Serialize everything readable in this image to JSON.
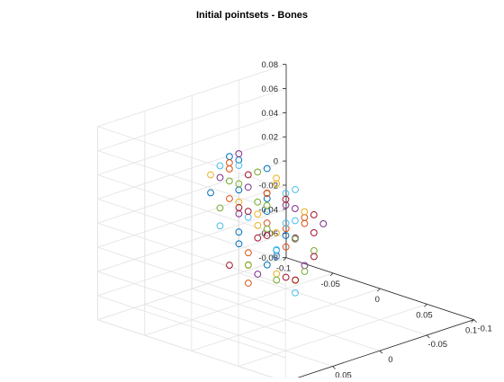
{
  "chart_data": {
    "type": "scatter",
    "projection": "3d",
    "title": "Initial pointsets - Bones",
    "xlabel": "",
    "ylabel": "",
    "zlabel": "",
    "grid": true,
    "marker": "circle-open",
    "xlim": [
      -0.1,
      0.1
    ],
    "ylim": [
      -0.1,
      0.1
    ],
    "zlim": [
      -0.08,
      0.08
    ],
    "x_ticks": [
      "-0.1",
      "-0.05",
      "0",
      "0.05",
      "0.1"
    ],
    "y_ticks": [
      "-0.1",
      "-0.05",
      "0",
      "0.05",
      "0.1"
    ],
    "z_ticks": [
      "-0.08",
      "-0.06",
      "-0.04",
      "-0.02",
      "0",
      "0.02",
      "0.04",
      "0.06",
      "0.08"
    ],
    "series_colors": [
      "#0072bd",
      "#d95319",
      "#edb120",
      "#7e2f8e",
      "#77ac30",
      "#4dbeee",
      "#a2142f"
    ],
    "series": [
      {
        "points": [
          [
            -0.04,
            0.02,
            0.05
          ],
          [
            -0.02,
            0.03,
            0.03
          ],
          [
            0.0,
            0.01,
            -0.02
          ],
          [
            -0.03,
            -0.01,
            0.01
          ],
          [
            -0.05,
            0.0,
            -0.03
          ],
          [
            -0.01,
            0.04,
            0.06
          ],
          [
            0.02,
            0.02,
            0.0
          ],
          [
            -0.04,
            -0.02,
            -0.05
          ],
          [
            -0.02,
            0.0,
            0.04
          ],
          [
            0.01,
            0.03,
            0.02
          ],
          [
            -0.03,
            0.02,
            -0.01
          ],
          [
            -0.05,
            0.03,
            0.02
          ]
        ]
      },
      {
        "points": [
          [
            -0.03,
            0.03,
            0.05
          ],
          [
            0.0,
            0.02,
            0.03
          ],
          [
            -0.02,
            -0.02,
            -0.03
          ],
          [
            -0.05,
            0.01,
            0.01
          ],
          [
            0.02,
            0.04,
            0.04
          ],
          [
            -0.04,
            0.0,
            -0.06
          ],
          [
            -0.01,
            0.01,
            0.0
          ],
          [
            0.03,
            0.01,
            0.01
          ],
          [
            -0.03,
            -0.03,
            -0.02
          ],
          [
            -0.02,
            0.04,
            0.05
          ],
          [
            0.04,
            0.02,
            0.02
          ],
          [
            -0.05,
            -0.01,
            -0.04
          ]
        ]
      },
      {
        "points": [
          [
            -0.04,
            0.04,
            0.04
          ],
          [
            -0.01,
            0.02,
            0.01
          ],
          [
            0.01,
            0.0,
            -0.01
          ],
          [
            -0.03,
            0.01,
            -0.04
          ],
          [
            -0.05,
            -0.02,
            -0.02
          ],
          [
            0.02,
            0.03,
            0.05
          ],
          [
            0.0,
            -0.01,
            -0.05
          ],
          [
            -0.02,
            0.03,
            0.02
          ],
          [
            0.05,
            0.03,
            0.03
          ],
          [
            -0.04,
            -0.03,
            -0.06
          ],
          [
            -0.01,
            0.0,
            0.03
          ],
          [
            0.03,
            0.04,
            0.01
          ]
        ]
      },
      {
        "points": [
          [
            -0.02,
            0.03,
            0.06
          ],
          [
            0.01,
            0.01,
            0.02
          ],
          [
            -0.04,
            0.01,
            0.0
          ],
          [
            -0.03,
            -0.02,
            -0.04
          ],
          [
            0.04,
            0.03,
            0.03
          ],
          [
            0.06,
            0.02,
            0.02
          ],
          [
            -0.01,
            -0.02,
            -0.02
          ],
          [
            0.02,
            0.0,
            -0.03
          ],
          [
            -0.05,
            0.02,
            0.03
          ],
          [
            0.0,
            0.04,
            0.04
          ],
          [
            -0.03,
            0.0,
            -0.05
          ],
          [
            0.05,
            0.04,
            0.01
          ]
        ]
      },
      {
        "points": [
          [
            -0.03,
            0.02,
            0.03
          ],
          [
            0.0,
            0.03,
            0.05
          ],
          [
            -0.02,
            0.0,
            -0.01
          ],
          [
            -0.05,
            -0.01,
            -0.05
          ],
          [
            0.03,
            0.02,
            0.0
          ],
          [
            -0.04,
            0.03,
            0.01
          ],
          [
            0.01,
            -0.01,
            -0.04
          ],
          [
            -0.01,
            0.02,
            0.02
          ],
          [
            0.02,
            0.04,
            0.03
          ],
          [
            -0.03,
            -0.02,
            -0.06
          ],
          [
            0.04,
            0.01,
            -0.01
          ],
          [
            -0.02,
            0.04,
            0.04
          ]
        ]
      },
      {
        "points": [
          [
            -0.04,
            0.01,
            0.04
          ],
          [
            -0.01,
            0.03,
            0.01
          ],
          [
            0.01,
            0.02,
            -0.02
          ],
          [
            -0.02,
            -0.01,
            -0.03
          ],
          [
            -0.05,
            0.02,
            -0.01
          ],
          [
            0.03,
            0.03,
            0.04
          ],
          [
            0.0,
            0.0,
            0.0
          ],
          [
            -0.03,
            0.04,
            0.05
          ],
          [
            0.04,
            0.03,
            0.02
          ],
          [
            -0.04,
            -0.03,
            -0.04
          ],
          [
            0.02,
            0.01,
            -0.05
          ],
          [
            -0.01,
            -0.02,
            0.02
          ]
        ]
      },
      {
        "points": [
          [
            -0.02,
            0.02,
            0.04
          ],
          [
            0.0,
            0.04,
            0.02
          ],
          [
            -0.03,
            0.0,
            -0.02
          ],
          [
            -0.05,
            0.0,
            0.0
          ],
          [
            0.02,
            0.02,
            0.03
          ],
          [
            0.05,
            0.02,
            0.01
          ],
          [
            -0.01,
            -0.01,
            -0.05
          ],
          [
            0.01,
            0.03,
            0.0
          ],
          [
            -0.04,
            0.02,
            -0.04
          ],
          [
            0.03,
            0.0,
            -0.02
          ],
          [
            -0.02,
            -0.03,
            -0.06
          ],
          [
            0.06,
            0.03,
            0.03
          ]
        ]
      }
    ]
  }
}
